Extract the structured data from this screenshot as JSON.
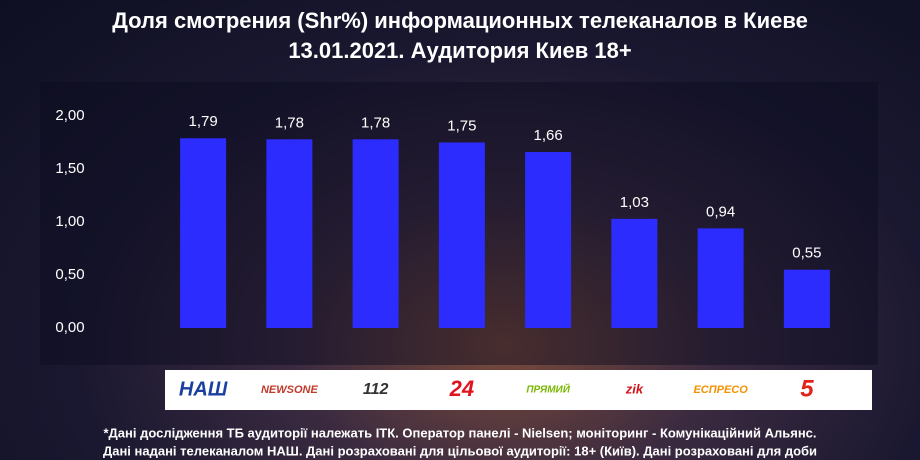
{
  "chart_data": {
    "type": "bar",
    "title": "Доля смотрения (Shr%) информационных телеканалов в Киеве",
    "subtitle": "13.01.2021. Аудитория Киев 18+",
    "categories": [
      "НАШ",
      "NEWSONE",
      "112",
      "24",
      "ПРЯМИЙ",
      "zik",
      "ЕСПРЕСО",
      "5"
    ],
    "values": [
      1.79,
      1.78,
      1.78,
      1.75,
      1.66,
      1.03,
      0.94,
      0.55
    ],
    "value_labels": [
      "1,79",
      "1,78",
      "1,78",
      "1,75",
      "1,66",
      "1,03",
      "0,94",
      "0,55"
    ],
    "color": "#2c2cff",
    "ylim": [
      0,
      2
    ],
    "yticks": [
      {
        "value": 0,
        "label": "0,00"
      },
      {
        "value": 0.5,
        "label": "0,50"
      },
      {
        "value": 1,
        "label": "1,00"
      },
      {
        "value": 1.5,
        "label": "1,50"
      },
      {
        "value": 2,
        "label": "2,00"
      }
    ],
    "notes": [
      "*Дані дослідження ТБ аудиторії належать ІТК. Оператор панелі - Nielsen; моніторинг - Комунікаційний Альянс.",
      "Дані надані телеканалом НАШ. Дані розраховані для цільової аудиторії: 18+ (Київ). Дані розраховані для доби"
    ]
  }
}
